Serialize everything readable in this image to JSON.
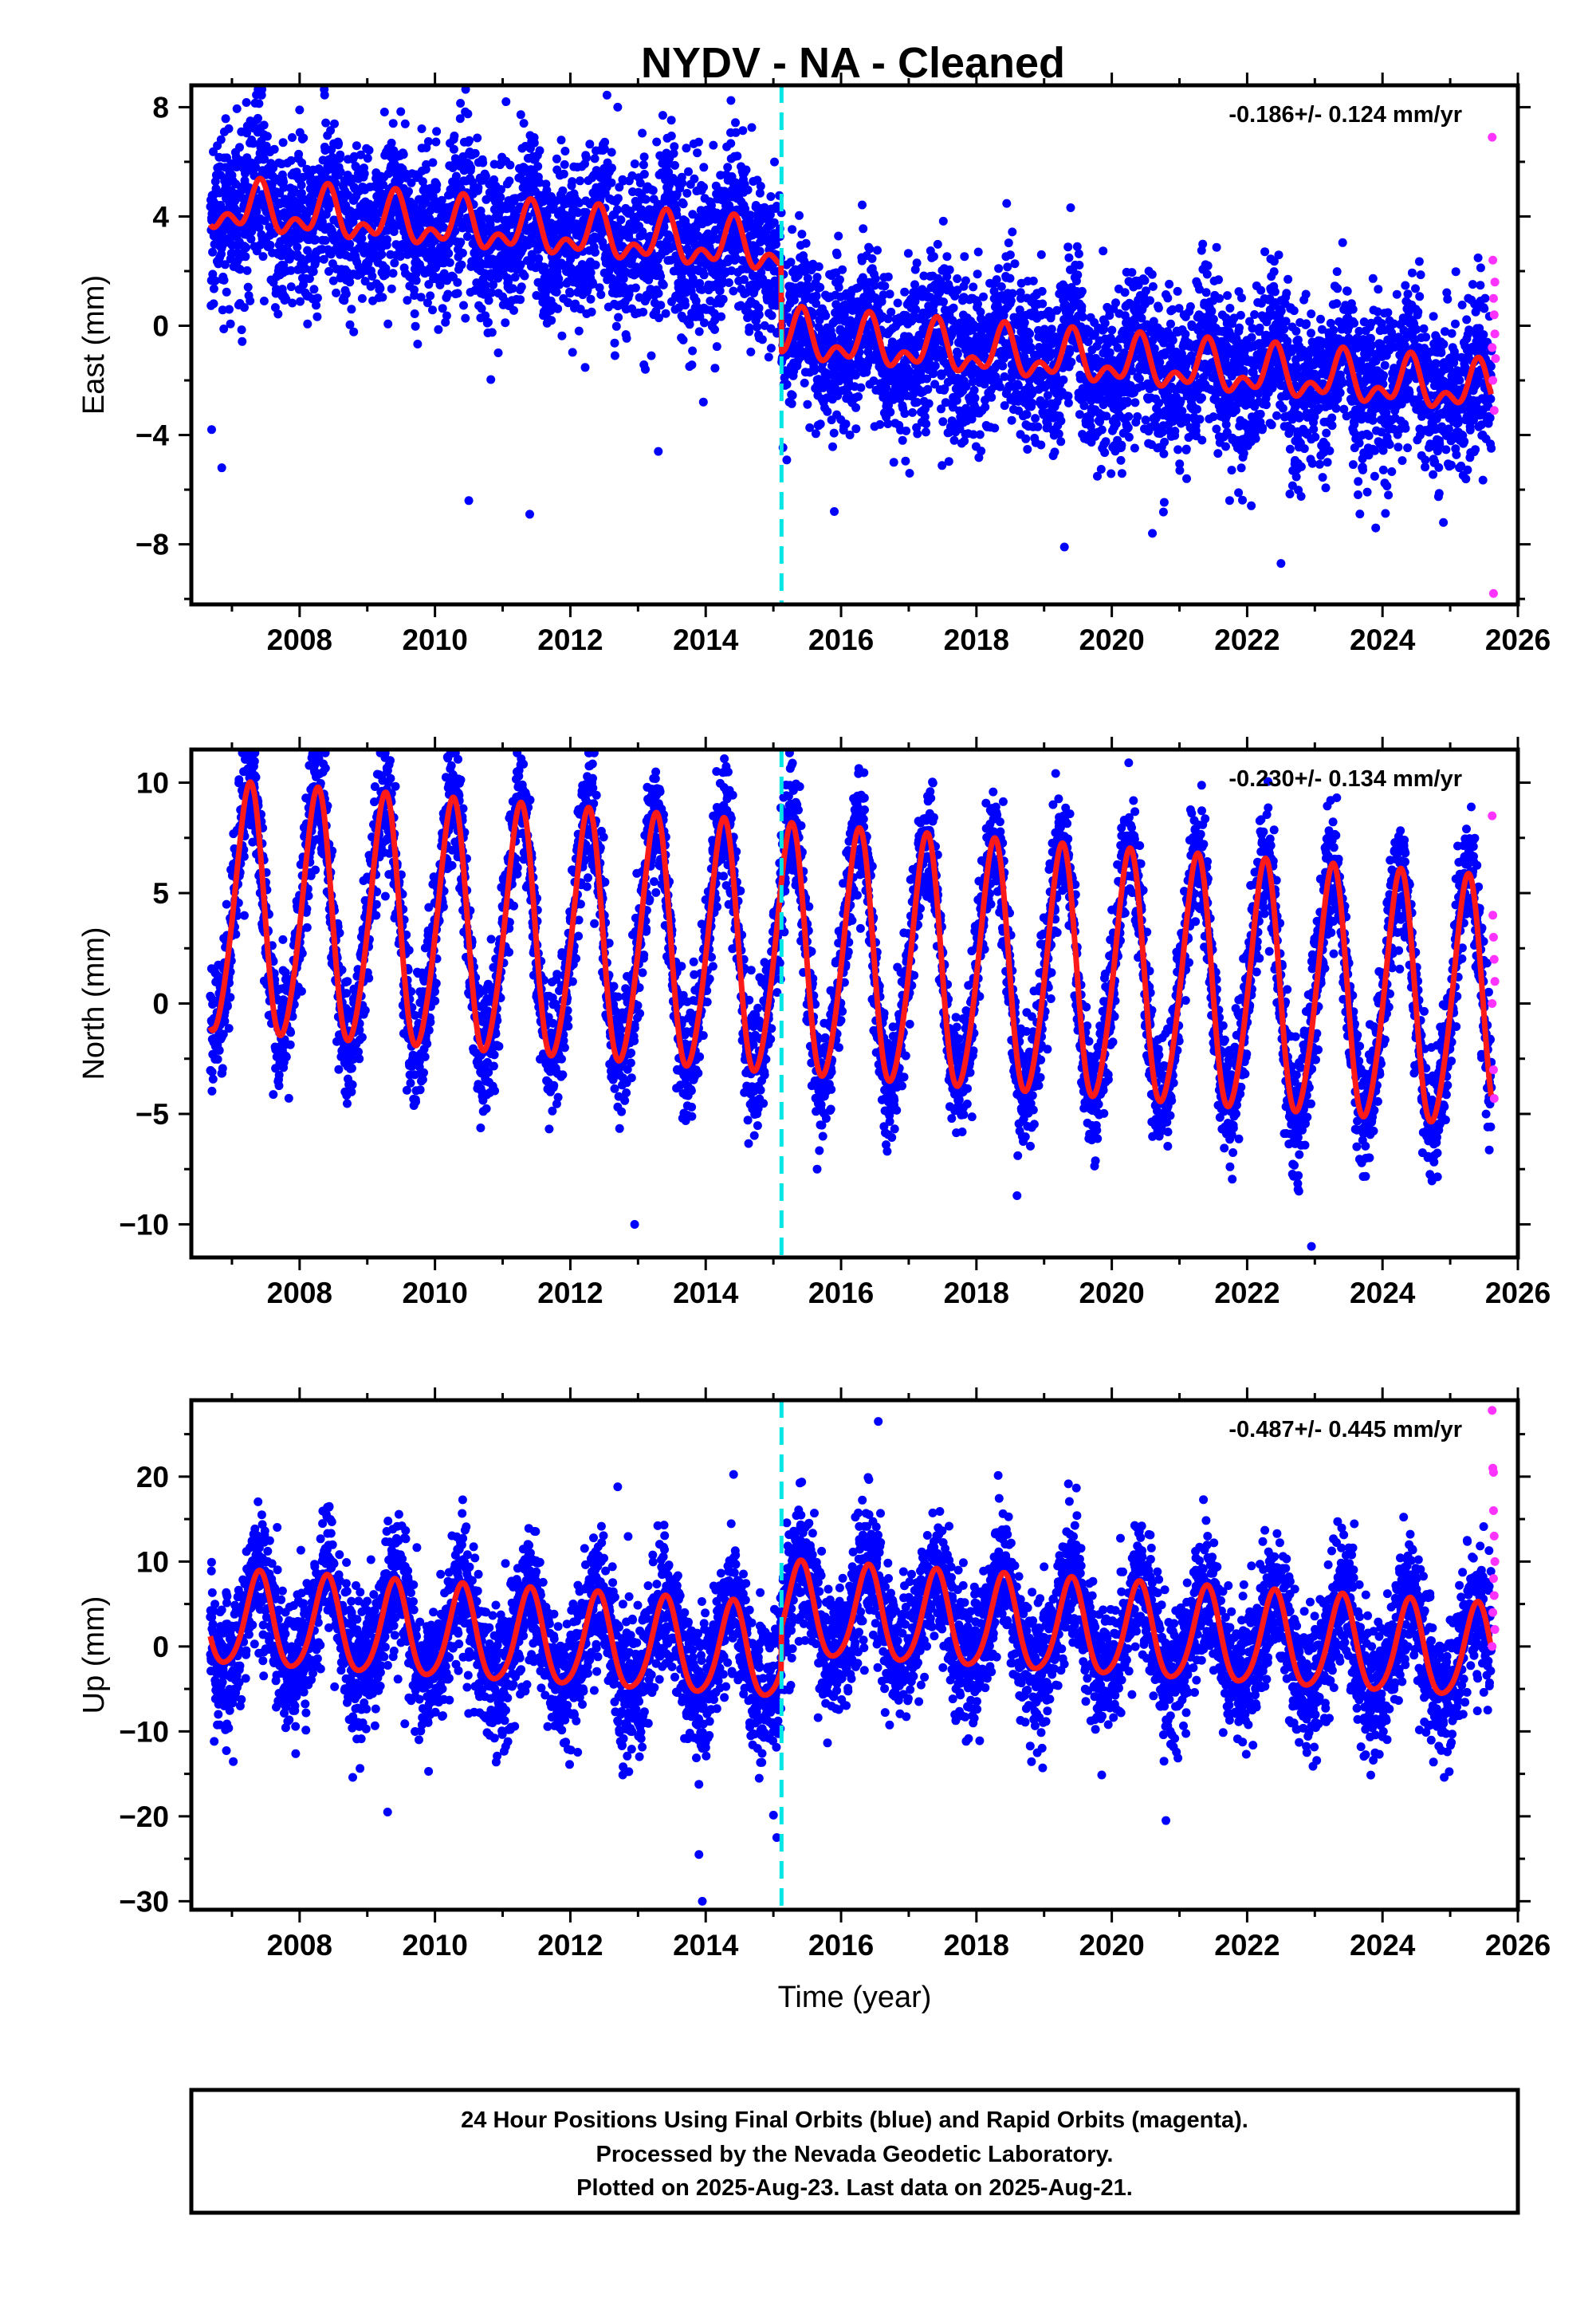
{
  "title": "NYDV  - NA - Cleaned",
  "colors": {
    "final": "#0000ff",
    "rapid": "#ff33ff",
    "model": "#ff1a1a",
    "break_line": "#00e5e5"
  },
  "chart_data": [
    {
      "type": "scatter",
      "name": "east",
      "ylabel": "East (mm)",
      "xlabel": "",
      "rate_text": "-0.186+/- 0.124 mm/yr",
      "xlim": [
        2006.4,
        2026.0
      ],
      "ylim": [
        -10.2,
        8.8
      ],
      "xticks": [
        2008,
        2010,
        2012,
        2014,
        2016,
        2018,
        2020,
        2022,
        2024,
        2026
      ],
      "yticks": [
        8,
        4,
        0,
        -4,
        -8
      ],
      "ytick_labels": [
        "8",
        "4",
        "0",
        "−4",
        "−8"
      ],
      "break_year": 2015.12,
      "model": {
        "offset_before": 2.6,
        "offset_after": -0.6,
        "rate": -0.186,
        "annual_amp": 0.7,
        "annual_phase": 0.15,
        "semiannual_amp": 0.5,
        "semiannual_phase": 0.3,
        "noise_sd": 1.5
      },
      "rapid_points": [
        {
          "x": 2025.62,
          "y": 6.9
        },
        {
          "x": 2025.63,
          "y": 2.4
        },
        {
          "x": 2025.64,
          "y": 1.0
        },
        {
          "x": 2025.65,
          "y": 0.4
        },
        {
          "x": 2025.66,
          "y": -0.3
        },
        {
          "x": 2025.67,
          "y": -1.2
        },
        {
          "x": 2025.63,
          "y": -2.0
        },
        {
          "x": 2025.65,
          "y": -3.1
        },
        {
          "x": 2025.64,
          "y": -9.8
        },
        {
          "x": 2025.66,
          "y": 1.6
        },
        {
          "x": 2025.62,
          "y": -0.8
        }
      ],
      "outliers": [
        {
          "x": 2006.85,
          "y": -5.2
        },
        {
          "x": 2006.7,
          "y": -3.8
        },
        {
          "x": 2010.5,
          "y": -6.4
        },
        {
          "x": 2011.4,
          "y": -6.9
        },
        {
          "x": 2013.3,
          "y": -4.6
        },
        {
          "x": 2011.05,
          "y": 8.2
        },
        {
          "x": 2012.7,
          "y": 8.0
        },
        {
          "x": 2008.0,
          "y": 7.9
        },
        {
          "x": 2019.3,
          "y": -8.1
        },
        {
          "x": 2020.6,
          "y": -7.6
        },
        {
          "x": 2022.5,
          "y": -8.7
        },
        {
          "x": 2023.9,
          "y": -7.4
        },
        {
          "x": 2024.9,
          "y": -7.2
        },
        {
          "x": 2015.9,
          "y": -6.8
        }
      ]
    },
    {
      "type": "scatter",
      "name": "north",
      "ylabel": "North (mm)",
      "xlabel": "",
      "rate_text": "-0.230+/- 0.134 mm/yr",
      "xlim": [
        2006.4,
        2026.0
      ],
      "ylim": [
        -11.5,
        11.5
      ],
      "xticks": [
        2008,
        2010,
        2012,
        2014,
        2016,
        2018,
        2020,
        2022,
        2024,
        2026
      ],
      "yticks": [
        10,
        5,
        0,
        -5,
        -10
      ],
      "ytick_labels": [
        "10",
        "5",
        "0",
        "−5",
        "−10"
      ],
      "break_year": 2015.12,
      "model": {
        "offset_before": 2.0,
        "offset_after": 2.0,
        "rate": -0.23,
        "annual_amp": 5.6,
        "annual_phase": 0.0,
        "semiannual_amp": 0.6,
        "semiannual_phase": 0.2,
        "noise_sd": 1.4
      },
      "rapid_points": [
        {
          "x": 2025.62,
          "y": 8.5
        },
        {
          "x": 2025.63,
          "y": 4.0
        },
        {
          "x": 2025.64,
          "y": 3.0
        },
        {
          "x": 2025.65,
          "y": 2.0
        },
        {
          "x": 2025.66,
          "y": 1.0
        },
        {
          "x": 2025.64,
          "y": -3.0
        },
        {
          "x": 2025.65,
          "y": -4.3
        },
        {
          "x": 2025.62,
          "y": 0.0
        }
      ],
      "outliers": [
        {
          "x": 2012.95,
          "y": -10.0
        },
        {
          "x": 2022.95,
          "y": -11.0
        },
        {
          "x": 2020.25,
          "y": 10.9
        },
        {
          "x": 2018.6,
          "y": -8.7
        }
      ]
    },
    {
      "type": "scatter",
      "name": "up",
      "ylabel": "Up (mm)",
      "xlabel": "Time (year)",
      "rate_text": "-0.487+/- 0.445 mm/yr",
      "xlim": [
        2006.4,
        2026.0
      ],
      "ylim": [
        -31.0,
        29.0
      ],
      "xticks": [
        2008,
        2010,
        2012,
        2014,
        2016,
        2018,
        2020,
        2022,
        2024,
        2026
      ],
      "yticks": [
        20,
        10,
        0,
        -10,
        -20,
        -30
      ],
      "ytick_labels": [
        "20",
        "10",
        "0",
        "−10",
        "−20",
        "−30"
      ],
      "break_year": 2015.12,
      "model": {
        "offset_before": -1.5,
        "offset_after": 3.6,
        "rate": -0.487,
        "annual_amp": 5.5,
        "annual_phase": 0.15,
        "semiannual_amp": 0.8,
        "semiannual_phase": 0.3,
        "noise_sd": 4.0
      },
      "rapid_points": [
        {
          "x": 2025.62,
          "y": 27.8
        },
        {
          "x": 2025.63,
          "y": 21.0
        },
        {
          "x": 2025.64,
          "y": 20.5
        },
        {
          "x": 2025.65,
          "y": 13.0
        },
        {
          "x": 2025.66,
          "y": 10.0
        },
        {
          "x": 2025.64,
          "y": 8.0
        },
        {
          "x": 2025.65,
          "y": 6.0
        },
        {
          "x": 2025.63,
          "y": 4.0
        },
        {
          "x": 2025.66,
          "y": 2.0
        },
        {
          "x": 2025.62,
          "y": 0.0
        },
        {
          "x": 2025.64,
          "y": 16.0
        }
      ],
      "outliers": [
        {
          "x": 2013.95,
          "y": -30.0
        },
        {
          "x": 2013.9,
          "y": -24.5
        },
        {
          "x": 2015.05,
          "y": -22.5
        },
        {
          "x": 2016.55,
          "y": 26.5
        },
        {
          "x": 2012.7,
          "y": 18.8
        },
        {
          "x": 2020.8,
          "y": -20.5
        },
        {
          "x": 2009.3,
          "y": -19.5
        }
      ]
    }
  ],
  "footer": {
    "line1": "24 Hour Positions Using Final Orbits (blue) and Rapid Orbits (magenta).",
    "line2": "Processed by the Nevada Geodetic Laboratory.",
    "line3": "Plotted on 2025-Aug-23. Last data on 2025-Aug-21."
  }
}
